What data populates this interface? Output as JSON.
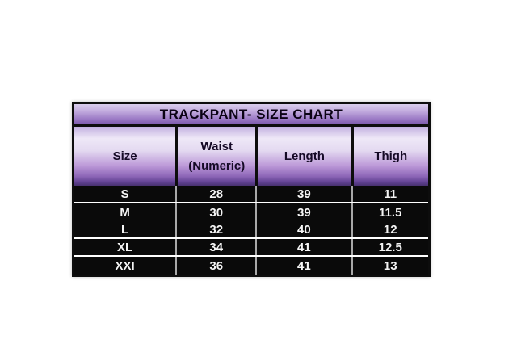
{
  "chart_data": {
    "type": "table",
    "title": "TRACKPANT- SIZE CHART",
    "columns": [
      {
        "label": "Size",
        "sub": ""
      },
      {
        "label": "Waist",
        "sub": "(Numeric)"
      },
      {
        "label": "Length",
        "sub": ""
      },
      {
        "label": "Thigh",
        "sub": ""
      }
    ],
    "rows": [
      [
        "S",
        "28",
        "39",
        "11"
      ],
      [
        "M",
        "30",
        "39",
        "11.5"
      ],
      [
        "L",
        "32",
        "40",
        "12"
      ],
      [
        "XL",
        "34",
        "41",
        "12.5"
      ],
      [
        "XXI",
        "36",
        "41",
        "13"
      ]
    ]
  },
  "colors": {
    "title_gradient_top": "#d9cdec",
    "title_gradient_bottom": "#7b58ab",
    "header_gradient_light": "#eee8f7",
    "header_gradient_dark": "#48316f",
    "data_background": "#0a0a0a",
    "data_text": "#f4f4f4",
    "border": "#0d0d0d",
    "row_separator": "#ffffff",
    "column_separator": "#a8a8a8",
    "page_background": "#ffffff"
  }
}
